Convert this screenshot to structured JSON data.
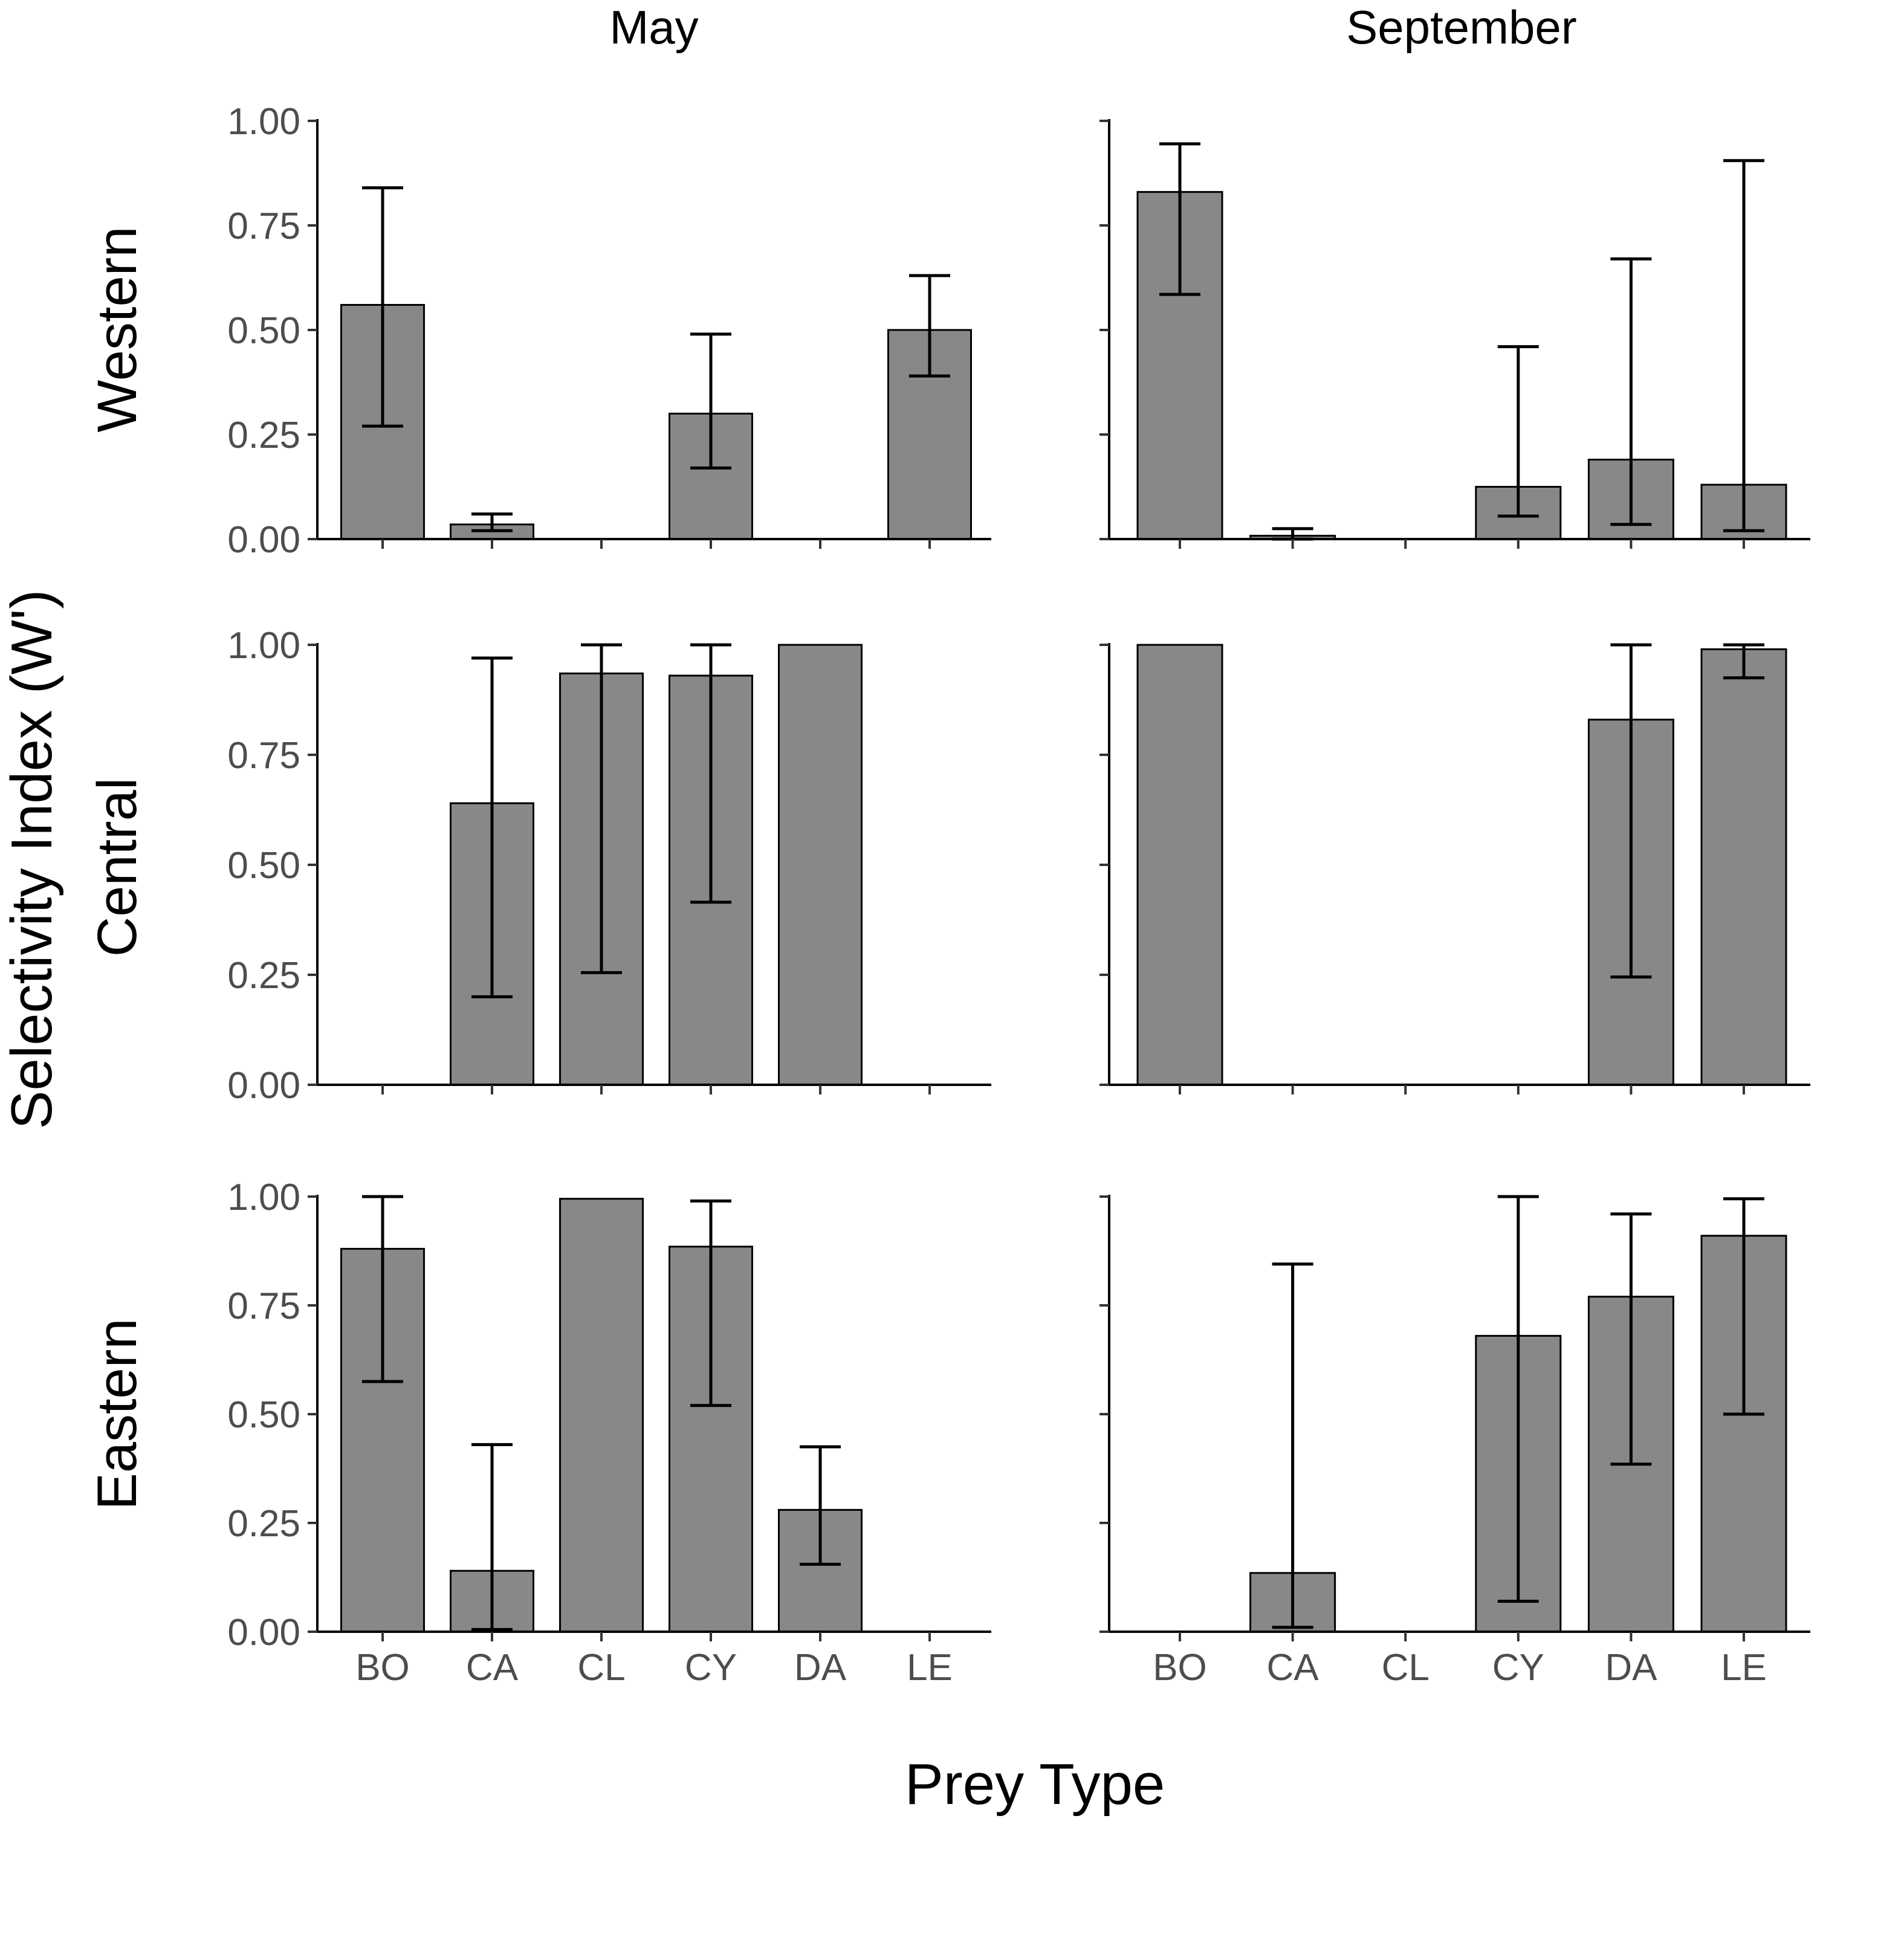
{
  "chart_data": {
    "type": "bar",
    "xlabel": "Prey Type",
    "ylabel": "Selectivity Index (W')",
    "ylim": [
      0,
      1
    ],
    "yticks": [
      "0.00",
      "0.25",
      "0.50",
      "0.75",
      "1.00"
    ],
    "categories": [
      "BO",
      "CA",
      "CL",
      "CY",
      "DA",
      "LE"
    ],
    "columns": [
      "May",
      "September"
    ],
    "rows": [
      "Western",
      "Central",
      "Eastern"
    ],
    "bar_color": "#888888",
    "panels": [
      {
        "row": "Western",
        "column": "May",
        "values": [
          0.56,
          0.035,
          0.0,
          0.3,
          0.0,
          0.5
        ],
        "error_low": [
          0.27,
          0.02,
          null,
          0.17,
          null,
          0.39
        ],
        "error_high": [
          0.84,
          0.06,
          null,
          0.49,
          null,
          0.63
        ]
      },
      {
        "row": "Western",
        "column": "September",
        "values": [
          0.83,
          0.008,
          0.0,
          0.125,
          0.19,
          0.13
        ],
        "error_low": [
          0.585,
          0.0,
          null,
          0.055,
          0.035,
          0.02
        ],
        "error_high": [
          0.945,
          0.025,
          null,
          0.46,
          0.67,
          0.905
        ]
      },
      {
        "row": "Central",
        "column": "May",
        "values": [
          0.0,
          0.64,
          0.935,
          0.93,
          1.0,
          0.0
        ],
        "error_low": [
          null,
          0.2,
          0.255,
          0.415,
          null,
          null
        ],
        "error_high": [
          null,
          0.97,
          1.0,
          1.0,
          null,
          null
        ]
      },
      {
        "row": "Central",
        "column": "September",
        "values": [
          1.0,
          0.0,
          0.0,
          0.0,
          0.83,
          0.99
        ],
        "error_low": [
          null,
          null,
          null,
          null,
          0.245,
          0.925
        ],
        "error_high": [
          null,
          null,
          null,
          null,
          1.0,
          1.0
        ]
      },
      {
        "row": "Eastern",
        "column": "May",
        "values": [
          0.88,
          0.14,
          0.995,
          0.885,
          0.28,
          0.0
        ],
        "error_low": [
          0.575,
          0.005,
          null,
          0.52,
          0.155,
          null
        ],
        "error_high": [
          1.0,
          0.43,
          null,
          0.99,
          0.425,
          null
        ]
      },
      {
        "row": "Eastern",
        "column": "September",
        "values": [
          0.0,
          0.135,
          0.0,
          0.68,
          0.77,
          0.91
        ],
        "error_low": [
          null,
          0.01,
          null,
          0.07,
          0.385,
          0.5
        ],
        "error_high": [
          null,
          0.845,
          null,
          1.0,
          0.96,
          0.995
        ]
      }
    ]
  }
}
